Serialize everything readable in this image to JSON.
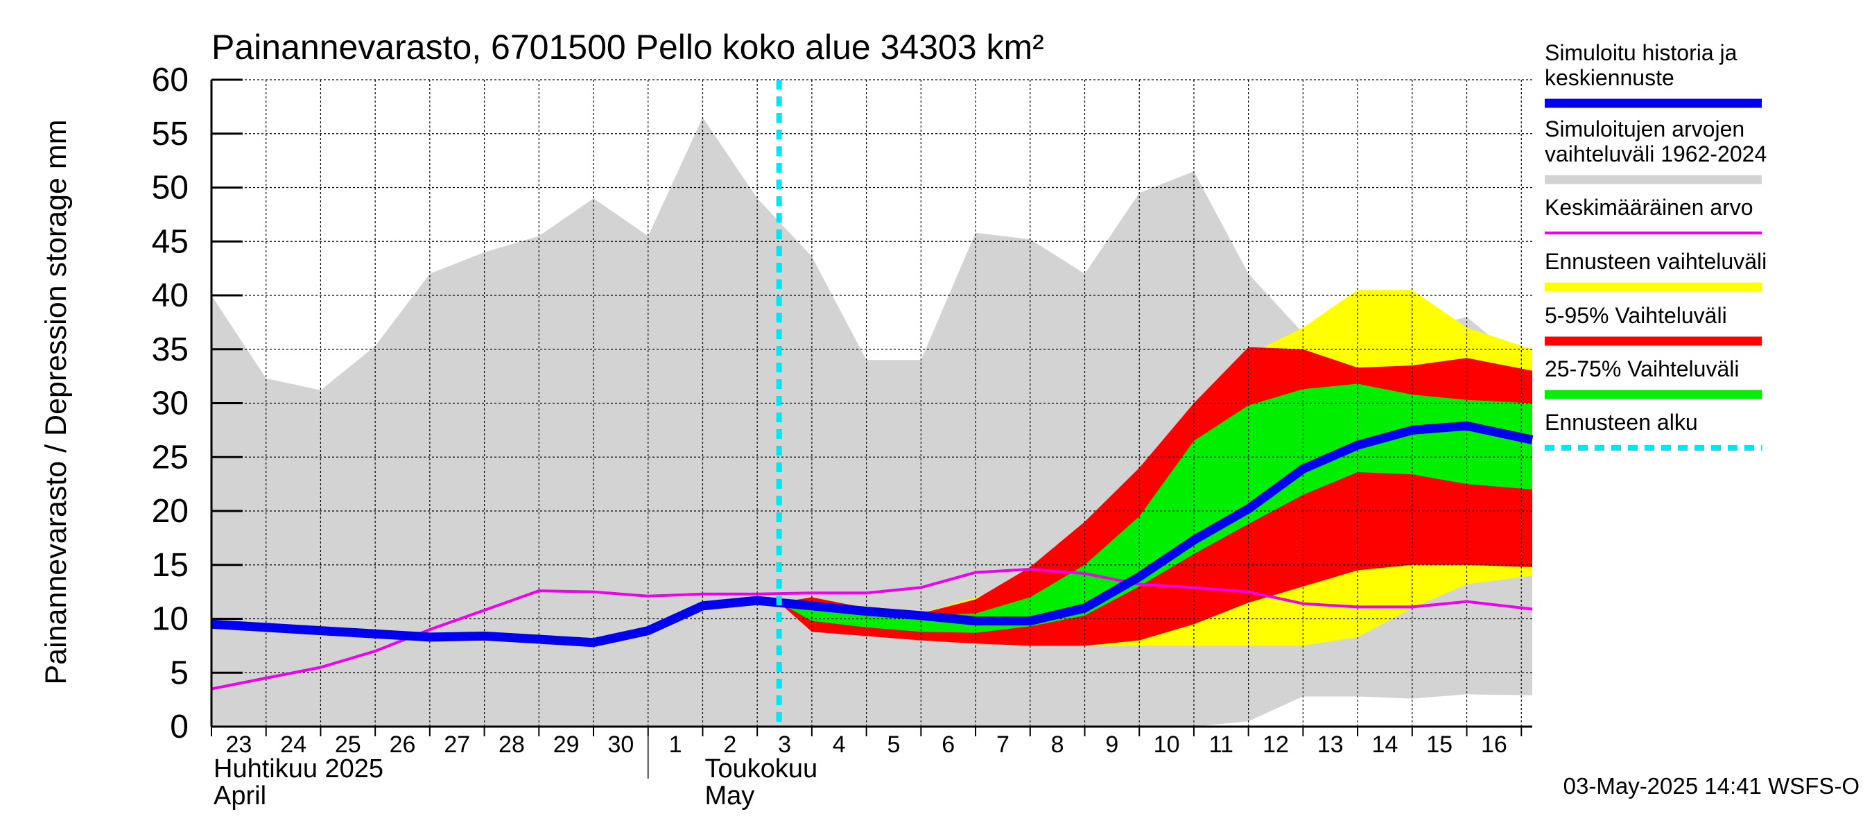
{
  "chart_data": {
    "type": "area",
    "title": "Painannevarasto, 6701500 Pello koko alue 34303 km²",
    "ylabel": "Painannevarasto / Depression storage    mm",
    "ylim": [
      0,
      60
    ],
    "yticks": [
      0,
      5,
      10,
      15,
      20,
      25,
      30,
      35,
      40,
      45,
      50,
      55,
      60
    ],
    "grid": true,
    "x_start_day_index": 0,
    "x_end_day_index": 24.2,
    "day_labels": [
      "23",
      "24",
      "25",
      "26",
      "27",
      "28",
      "29",
      "30",
      "1",
      "2",
      "3",
      "4",
      "5",
      "6",
      "7",
      "8",
      "9",
      "10",
      "11",
      "12",
      "13",
      "14",
      "15",
      "16"
    ],
    "month_labels": [
      {
        "day_index": 0,
        "fi": "Huhtikuu  2025",
        "en": "April"
      },
      {
        "day_index": 9,
        "fi": "Toukokuu",
        "en": "May"
      }
    ],
    "forecast_start_day_index": 10.4,
    "timestamp": "03-May-2025 14:41 WSFS-O",
    "colors": {
      "history_range": "#d3d3d3",
      "median": "#0000ee",
      "mean": "#ee00ee",
      "forecast_range": "#ffff00",
      "p5_95": "#ff0000",
      "p25_75": "#00ee00",
      "forecast_start": "#00e5ee"
    },
    "series": [
      {
        "name": "hist_upper",
        "x": [
          0,
          1,
          2,
          3,
          4,
          5,
          6,
          7,
          8,
          9,
          10,
          11,
          12,
          13,
          14,
          15,
          16,
          17,
          18,
          19,
          20,
          21,
          22,
          23,
          24.2
        ],
        "values": [
          40,
          32.3,
          31.2,
          35.3,
          42,
          44,
          45.5,
          49,
          45.5,
          56.5,
          49,
          43.6,
          34,
          34,
          45.8,
          45.2,
          42,
          49.5,
          51.5,
          42,
          36.5,
          34.8,
          36.7,
          38,
          33
        ]
      },
      {
        "name": "hist_lower",
        "x": [
          0,
          10.4,
          11,
          12,
          13,
          14,
          15,
          16,
          17,
          18,
          19,
          20,
          21,
          22,
          23,
          24.2
        ],
        "values": [
          0,
          0,
          0,
          0,
          0,
          0,
          0,
          0,
          0,
          0,
          0.5,
          2.8,
          2.8,
          2.6,
          3.0,
          2.9
        ]
      },
      {
        "name": "yellow_upper",
        "x": [
          10.4,
          11,
          12,
          13,
          14,
          15,
          16,
          17,
          18,
          19,
          20,
          21,
          22,
          23,
          24.2
        ],
        "values": [
          11.5,
          12,
          11,
          10.5,
          12,
          13.5,
          16.5,
          22,
          28.5,
          34.5,
          37,
          40.5,
          40.5,
          37,
          35
        ]
      },
      {
        "name": "yellow_lower",
        "x": [
          10.4,
          11,
          12,
          13,
          14,
          15,
          16,
          17,
          18,
          19,
          20,
          21,
          22,
          23,
          24.2
        ],
        "values": [
          11.5,
          9,
          8.5,
          8,
          7.7,
          7.5,
          7.5,
          7.5,
          7.5,
          7.5,
          7.5,
          8.3,
          11,
          13.2,
          14
        ]
      },
      {
        "name": "red_upper",
        "x": [
          10.4,
          11,
          12,
          13,
          14,
          15,
          16,
          17,
          18,
          19,
          20,
          21,
          22,
          23,
          24.2
        ],
        "values": [
          11.5,
          12,
          11,
          10.5,
          11.8,
          14.8,
          19,
          24,
          30,
          35.2,
          35,
          33.3,
          33.5,
          34.2,
          33
        ]
      },
      {
        "name": "red_lower",
        "x": [
          10.4,
          11,
          12,
          13,
          14,
          15,
          16,
          17,
          18,
          19,
          20,
          21,
          22,
          23,
          24.2
        ],
        "values": [
          11.5,
          8.8,
          8.4,
          8,
          7.7,
          7.5,
          7.5,
          8,
          9.5,
          11.5,
          13,
          14.5,
          15,
          15,
          14.8
        ]
      },
      {
        "name": "green_upper",
        "x": [
          10.4,
          11,
          12,
          13,
          14,
          15,
          16,
          17,
          18,
          19,
          20,
          21,
          22,
          23,
          24.2
        ],
        "values": [
          11.5,
          11.5,
          10.8,
          10.3,
          10.5,
          12,
          15,
          19.5,
          26.5,
          29.8,
          31.3,
          31.8,
          30.8,
          30.3,
          30
        ]
      },
      {
        "name": "green_lower",
        "x": [
          10.4,
          11,
          12,
          13,
          14,
          15,
          16,
          17,
          18,
          19,
          20,
          21,
          22,
          23,
          24.2
        ],
        "values": [
          11.5,
          9.8,
          9.2,
          8.8,
          8.7,
          9.3,
          10.3,
          13,
          16,
          18.8,
          21.5,
          23.6,
          23.4,
          22.5,
          22
        ]
      },
      {
        "name": "Keskimääräinen arvo",
        "x": [
          0,
          1,
          2,
          3,
          4,
          5,
          6,
          7,
          8,
          9,
          10,
          11,
          12,
          13,
          14,
          15,
          16,
          17,
          18,
          19,
          20,
          21,
          22,
          23,
          24.2
        ],
        "values": [
          3.5,
          4.5,
          5.5,
          7,
          9,
          10.8,
          12.6,
          12.5,
          12.1,
          12.3,
          12.3,
          12.4,
          12.4,
          12.9,
          14.3,
          14.6,
          14.2,
          13.2,
          12.9,
          12.5,
          11.4,
          11.1,
          11.1,
          11.6,
          10.9
        ]
      },
      {
        "name": "Simuloitu historia ja keskiennuste",
        "x": [
          0,
          1,
          2,
          3,
          4,
          5,
          6,
          7,
          8,
          9,
          10,
          10.4,
          11,
          12,
          13,
          14,
          15,
          16,
          17,
          18,
          19,
          20,
          21,
          22,
          23,
          24.2
        ],
        "values": [
          9.5,
          9.2,
          8.9,
          8.6,
          8.3,
          8.4,
          8.1,
          7.8,
          8.9,
          11.2,
          11.7,
          11.5,
          11.2,
          10.7,
          10.3,
          9.8,
          9.8,
          11,
          13.9,
          17.3,
          20.2,
          23.9,
          26.1,
          27.5,
          27.9,
          26.6
        ]
      }
    ],
    "legend": [
      {
        "label": "Simuloitu historia ja keskiennuste",
        "color": "#0000ee",
        "style": "thick"
      },
      {
        "label": "Simuloitujen arvojen vaihteluväli 1962-2024",
        "color": "#d3d3d3",
        "style": "thick"
      },
      {
        "label": "Keskimääräinen arvo",
        "color": "#ee00ee",
        "style": "thin"
      },
      {
        "label": "Ennusteen vaihteluväli",
        "color": "#ffff00",
        "style": "thick"
      },
      {
        "label": "5-95% Vaihteluväli",
        "color": "#ff0000",
        "style": "thick"
      },
      {
        "label": "25-75% Vaihteluväli",
        "color": "#00ee00",
        "style": "thick"
      },
      {
        "label": "Ennusteen alku",
        "color": "#00e5ee",
        "style": "dashed"
      }
    ],
    "legend_placement": "right"
  }
}
